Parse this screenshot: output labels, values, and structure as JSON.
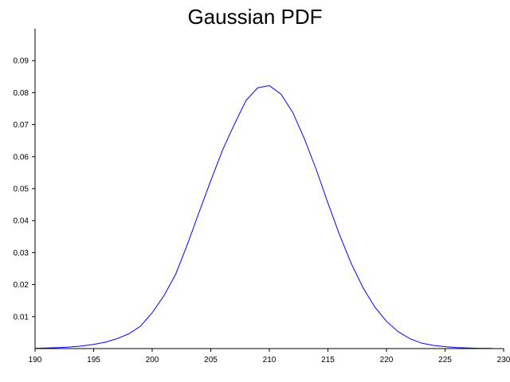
{
  "chart_data": {
    "type": "line",
    "title": "Gaussian PDF",
    "xlabel": "",
    "ylabel": "",
    "xlim": [
      190,
      230
    ],
    "ylim": [
      0,
      0.1
    ],
    "x_ticks": [
      190,
      195,
      200,
      205,
      210,
      215,
      220,
      225,
      230
    ],
    "x_tick_labels": [
      "190",
      "195",
      "200",
      "205",
      "210",
      "215",
      "220",
      "225",
      "230"
    ],
    "y_ticks": [
      0.01,
      0.02,
      0.03,
      0.04,
      0.05,
      0.06,
      0.07,
      0.08,
      0.09
    ],
    "y_tick_labels": [
      "0.01",
      "0.02",
      "0.03",
      "0.04",
      "0.05",
      "0.06",
      "0.07",
      "0.08",
      "0.09"
    ],
    "grid": false,
    "series": [
      {
        "color": "#0000ff",
        "x": [
          190,
          191,
          192,
          193,
          194,
          195,
          196,
          197,
          198,
          199,
          200,
          201,
          202,
          203,
          204,
          205,
          206,
          207,
          208,
          209,
          210,
          211,
          212,
          213,
          214,
          215,
          216,
          217,
          218,
          219,
          220,
          221,
          222,
          223,
          224,
          225,
          226,
          227,
          228,
          229
        ],
        "y": [
          0.0001,
          0.0002,
          0.0003,
          0.0005,
          0.0008,
          0.0013,
          0.002,
          0.0031,
          0.0046,
          0.007,
          0.0112,
          0.0165,
          0.0232,
          0.0325,
          0.0426,
          0.0525,
          0.062,
          0.07,
          0.0775,
          0.0815,
          0.0822,
          0.0795,
          0.0738,
          0.0655,
          0.056,
          0.0455,
          0.0355,
          0.0265,
          0.019,
          0.013,
          0.0085,
          0.0053,
          0.0031,
          0.0017,
          0.001,
          0.0006,
          0.0003,
          0.0002,
          0.0001,
          0.0001
        ]
      }
    ]
  }
}
